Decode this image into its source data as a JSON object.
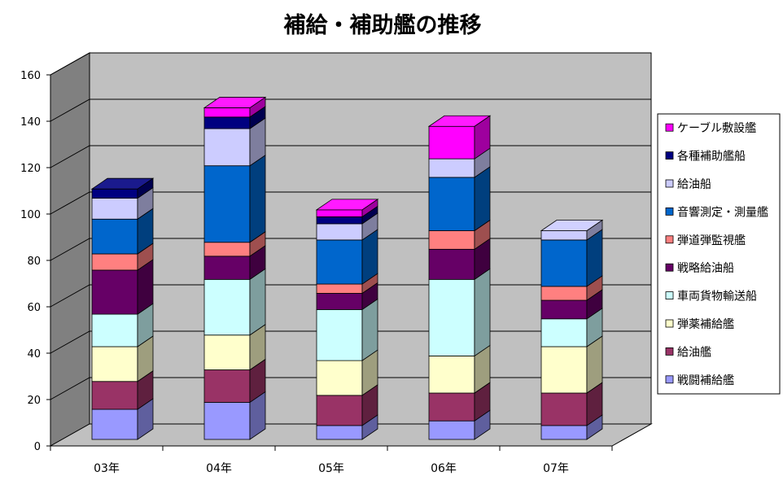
{
  "chart_data": {
    "type": "bar",
    "stacked": true,
    "three_d": true,
    "title": "補給・補助艦の推移",
    "xlabel": "",
    "ylabel": "",
    "ylim": [
      0,
      160
    ],
    "yticks": [
      0,
      20,
      40,
      60,
      80,
      100,
      120,
      140,
      160
    ],
    "grid": true,
    "legend_position": "right",
    "categories": [
      "03年",
      "04年",
      "05年",
      "06年",
      "07年"
    ],
    "series": [
      {
        "name": "戦闘補給艦",
        "color": "#9999ff",
        "values": [
          13,
          16,
          6,
          8,
          6
        ]
      },
      {
        "name": "給油艦",
        "color": "#993366",
        "values": [
          12,
          14,
          13,
          12,
          14
        ]
      },
      {
        "name": "弾薬補給艦",
        "color": "#ffffcc",
        "values": [
          15,
          15,
          15,
          16,
          20
        ]
      },
      {
        "name": "車両貨物輸送船",
        "color": "#ccffff",
        "values": [
          14,
          24,
          22,
          33,
          12
        ]
      },
      {
        "name": "戦略給油船",
        "color": "#660066",
        "values": [
          19,
          10,
          7,
          13,
          8
        ]
      },
      {
        "name": "弾道弾監視艦",
        "color": "#ff8080",
        "values": [
          7,
          6,
          4,
          8,
          6
        ]
      },
      {
        "name": "音響測定・測量艦",
        "color": "#0066cc",
        "values": [
          15,
          33,
          19,
          23,
          20
        ]
      },
      {
        "name": "給油船",
        "color": "#ccccff",
        "values": [
          9,
          16,
          7,
          8,
          4
        ]
      },
      {
        "name": "各種補助艦船",
        "color": "#000080",
        "values": [
          4,
          5,
          3,
          0,
          0
        ]
      },
      {
        "name": "ケーブル敷設艦",
        "color": "#ff00ff",
        "values": [
          0,
          4,
          3,
          14,
          0
        ]
      }
    ]
  }
}
